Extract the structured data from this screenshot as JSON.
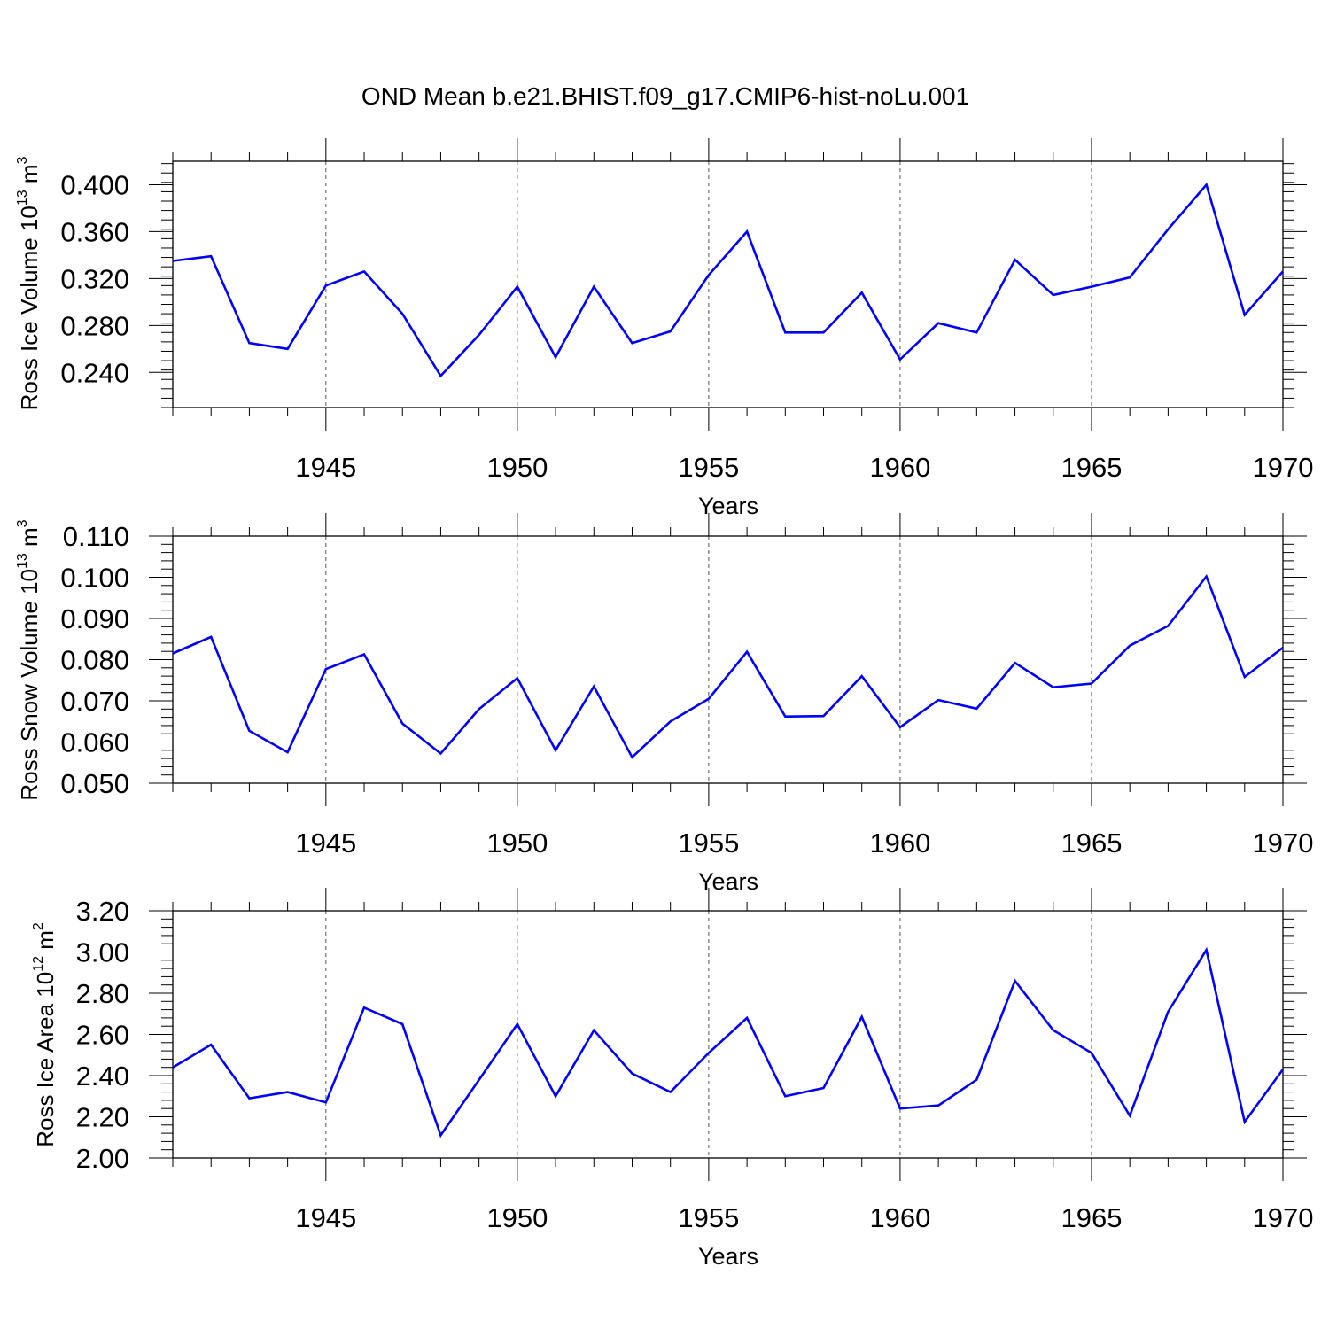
{
  "title": "OND Mean b.e21.BHIST.f09_g17.CMIP6-hist-noLu.001",
  "chart_data": [
    {
      "type": "line",
      "title": "OND Mean b.e21.BHIST.f09_g17.CMIP6-hist-noLu.001",
      "xlabel": "Years",
      "ylabel": "Ross Ice Volume 10",
      "ylabel_exp": "13",
      "ylabel_unit": "m",
      "ylabel_unit_exp": "3",
      "xlim": [
        1941,
        1970
      ],
      "ylim": [
        0.21,
        0.42
      ],
      "y_ticks": [
        "0.240",
        "0.280",
        "0.320",
        "0.360",
        "0.400"
      ],
      "y_tick_values": [
        0.24,
        0.28,
        0.32,
        0.36,
        0.4
      ],
      "x_ticks": [
        "1945",
        "1950",
        "1955",
        "1960",
        "1965",
        "1970"
      ],
      "x_tick_values": [
        1945,
        1950,
        1955,
        1960,
        1965,
        1970
      ],
      "x": [
        1941,
        1942,
        1943,
        1944,
        1945,
        1946,
        1947,
        1948,
        1949,
        1950,
        1951,
        1952,
        1953,
        1954,
        1955,
        1956,
        1957,
        1958,
        1959,
        1960,
        1961,
        1962,
        1963,
        1964,
        1965,
        1966,
        1967,
        1968,
        1969,
        1970
      ],
      "values": [
        0.335,
        0.339,
        0.265,
        0.26,
        0.314,
        0.326,
        0.29,
        0.237,
        0.272,
        0.313,
        0.253,
        0.313,
        0.265,
        0.275,
        0.323,
        0.36,
        0.274,
        0.274,
        0.308,
        0.251,
        0.282,
        0.274,
        0.336,
        0.306,
        0.313,
        0.321,
        0.362,
        0.4,
        0.289,
        0.326
      ],
      "line_color": "#0000ff",
      "grid": "vertical dashed at labeled years"
    },
    {
      "type": "line",
      "xlabel": "Years",
      "ylabel": "Ross Snow Volume 10",
      "ylabel_exp": "13",
      "ylabel_unit": "m",
      "ylabel_unit_exp": "3",
      "xlim": [
        1941,
        1970
      ],
      "ylim": [
        0.05,
        0.11
      ],
      "y_ticks": [
        "0.050",
        "0.060",
        "0.070",
        "0.080",
        "0.090",
        "0.100",
        "0.110"
      ],
      "y_tick_values": [
        0.05,
        0.06,
        0.07,
        0.08,
        0.09,
        0.1,
        0.11
      ],
      "x_ticks": [
        "1945",
        "1950",
        "1955",
        "1960",
        "1965",
        "1970"
      ],
      "x_tick_values": [
        1945,
        1950,
        1955,
        1960,
        1965,
        1970
      ],
      "x": [
        1941,
        1942,
        1943,
        1944,
        1945,
        1946,
        1947,
        1948,
        1949,
        1950,
        1951,
        1952,
        1953,
        1954,
        1955,
        1956,
        1957,
        1958,
        1959,
        1960,
        1961,
        1962,
        1963,
        1964,
        1965,
        1966,
        1967,
        1968,
        1969,
        1970
      ],
      "values": [
        0.0815,
        0.0855,
        0.0627,
        0.0575,
        0.0777,
        0.0813,
        0.0645,
        0.0572,
        0.068,
        0.0755,
        0.058,
        0.0735,
        0.0563,
        0.065,
        0.0705,
        0.0819,
        0.0662,
        0.0663,
        0.076,
        0.0636,
        0.0702,
        0.0681,
        0.0792,
        0.0733,
        0.0742,
        0.0834,
        0.0882,
        0.1002,
        0.0758,
        0.0829
      ],
      "line_color": "#0000ff",
      "grid": "vertical dashed at labeled years"
    },
    {
      "type": "line",
      "xlabel": "Years",
      "ylabel": "Ross Ice Area 10",
      "ylabel_exp": "12",
      "ylabel_unit": "m",
      "ylabel_unit_exp": "2",
      "xlim": [
        1941,
        1970
      ],
      "ylim": [
        2.0,
        3.2
      ],
      "y_ticks": [
        "2.00",
        "2.20",
        "2.40",
        "2.60",
        "2.80",
        "3.00",
        "3.20"
      ],
      "y_tick_values": [
        2.0,
        2.2,
        2.4,
        2.6,
        2.8,
        3.0,
        3.2
      ],
      "x_ticks": [
        "1945",
        "1950",
        "1955",
        "1960",
        "1965",
        "1970"
      ],
      "x_tick_values": [
        1945,
        1950,
        1955,
        1960,
        1965,
        1970
      ],
      "x": [
        1941,
        1942,
        1943,
        1944,
        1945,
        1946,
        1947,
        1948,
        1949,
        1950,
        1951,
        1952,
        1953,
        1954,
        1955,
        1956,
        1957,
        1958,
        1959,
        1960,
        1961,
        1962,
        1963,
        1964,
        1965,
        1966,
        1967,
        1968,
        1969,
        1970
      ],
      "values": [
        2.44,
        2.55,
        2.29,
        2.32,
        2.27,
        2.73,
        2.65,
        2.11,
        2.38,
        2.65,
        2.3,
        2.62,
        2.41,
        2.32,
        2.51,
        2.68,
        2.3,
        2.34,
        2.685,
        2.24,
        2.255,
        2.38,
        2.86,
        2.62,
        2.51,
        2.205,
        2.71,
        3.01,
        2.175,
        2.43
      ],
      "line_color": "#0000ff",
      "grid": "vertical dashed at labeled years"
    }
  ]
}
